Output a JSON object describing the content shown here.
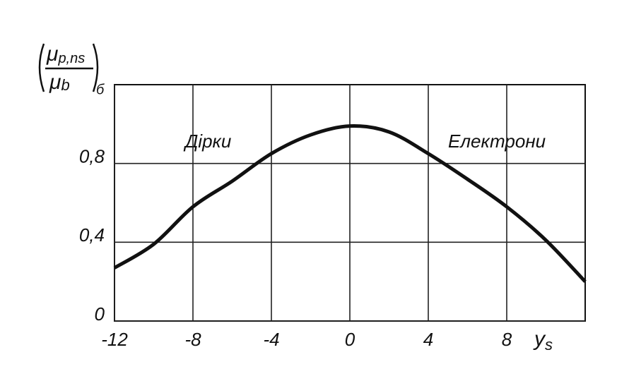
{
  "chart_data": {
    "type": "line",
    "y_label": {
      "symbol": "μ",
      "numerator_subscript": "p,ns",
      "denominator_symbol": "μ",
      "denominator_subscript": "b",
      "outer_subscript": "б"
    },
    "x_label": {
      "symbol": "y",
      "subscript": "s"
    },
    "annotations": [
      "Дірки",
      "Електрони"
    ],
    "x": [
      -12,
      -10,
      -8,
      -6,
      -4,
      -2,
      0,
      2,
      4,
      6,
      8,
      10,
      12
    ],
    "values": [
      0.27,
      0.39,
      0.58,
      0.71,
      0.85,
      0.945,
      0.99,
      0.96,
      0.85,
      0.72,
      0.58,
      0.41,
      0.2
    ],
    "color": "#111111",
    "xlim": [
      -12,
      12
    ],
    "xticks": [
      -12,
      -8,
      -4,
      0,
      4,
      8
    ],
    "ylim": [
      0,
      1.2
    ],
    "yticks": [
      0,
      {
        "value": 0.4,
        "label": "0,4"
      },
      {
        "value": 0.8,
        "label": "0,8"
      }
    ],
    "grid": true
  }
}
